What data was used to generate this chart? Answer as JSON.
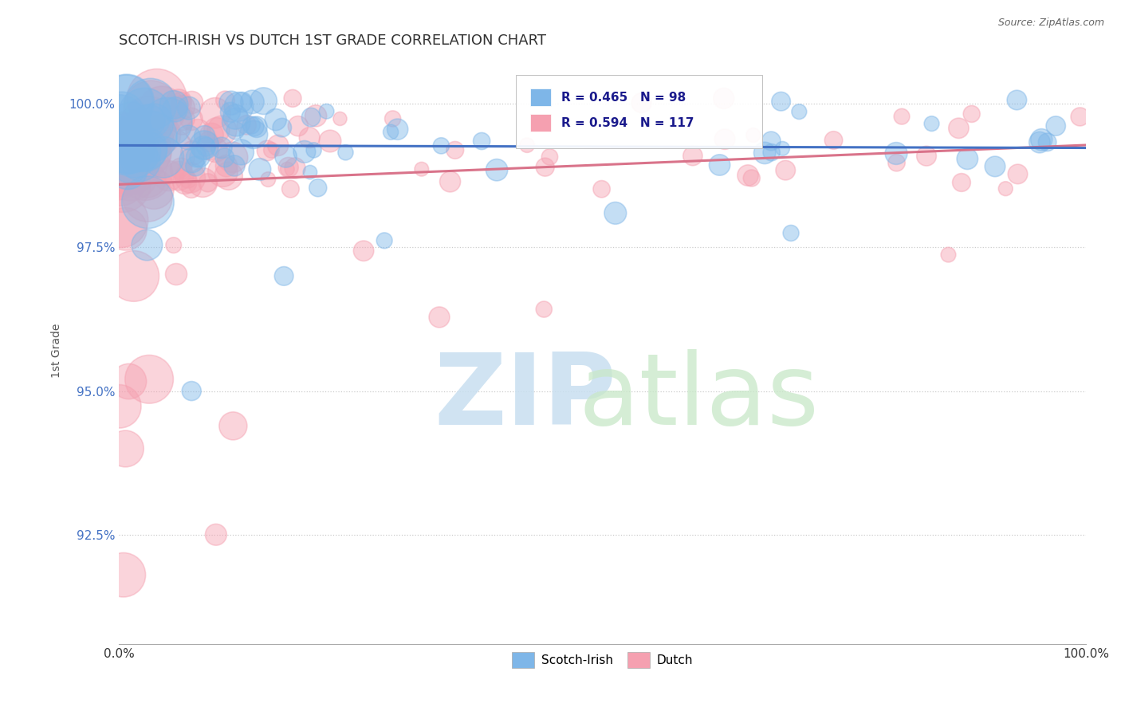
{
  "title": "SCOTCH-IRISH VS DUTCH 1ST GRADE CORRELATION CHART",
  "source": "Source: ZipAtlas.com",
  "ylabel": "1st Grade",
  "xlim": [
    0.0,
    1.0
  ],
  "ylim": [
    0.906,
    1.008
  ],
  "yticks": [
    0.925,
    0.95,
    0.975,
    1.0
  ],
  "ytick_labels": [
    "92.5%",
    "95.0%",
    "97.5%",
    "100.0%"
  ],
  "xtick_labels": [
    "0.0%",
    "100.0%"
  ],
  "xticks": [
    0.0,
    1.0
  ],
  "scotch_irish_color": "#7eb6e8",
  "dutch_color": "#f5a0b0",
  "scotch_irish_line_color": "#4472c4",
  "dutch_line_color": "#d9738a",
  "R_scotch": 0.465,
  "N_scotch": 98,
  "R_dutch": 0.594,
  "N_dutch": 117,
  "legend_scotch_label": "Scotch-Irish",
  "legend_dutch_label": "Dutch",
  "background_color": "#ffffff",
  "grid_color": "#cccccc",
  "title_fontsize": 13,
  "watermark_zip_color": "#c8dff0",
  "watermark_atlas_color": "#c8e8c8"
}
